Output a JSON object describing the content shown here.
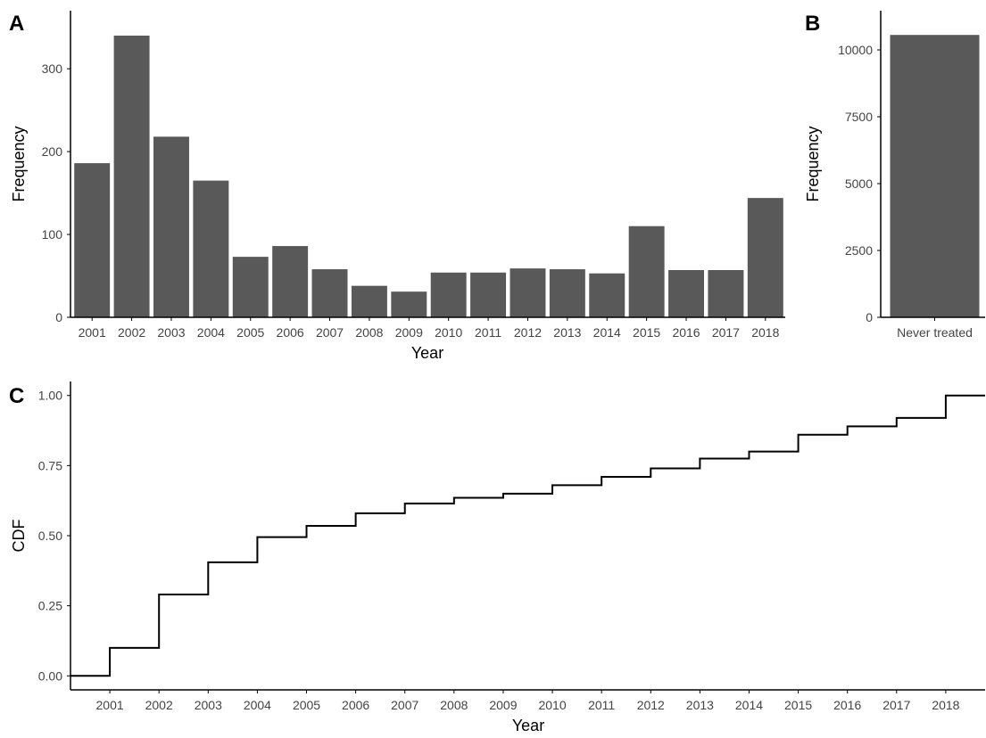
{
  "colors": {
    "bar": "#595959",
    "axis": "#000000",
    "tick_text": "#444444",
    "line": "#000000"
  },
  "chart_data": [
    {
      "panel": "A",
      "type": "bar",
      "xlabel": "Year",
      "ylabel": "Frequency",
      "categories": [
        "2001",
        "2002",
        "2003",
        "2004",
        "2005",
        "2006",
        "2007",
        "2008",
        "2009",
        "2010",
        "2011",
        "2012",
        "2013",
        "2014",
        "2015",
        "2016",
        "2017",
        "2018"
      ],
      "values": [
        186,
        340,
        218,
        165,
        73,
        86,
        58,
        38,
        31,
        54,
        54,
        59,
        58,
        53,
        110,
        57,
        57,
        144
      ],
      "ylim": [
        0,
        355
      ],
      "yticks": [
        0,
        100,
        200,
        300
      ],
      "ytick_labels": [
        "0",
        "100",
        "200",
        "300"
      ],
      "grid": false
    },
    {
      "panel": "B",
      "type": "bar",
      "xlabel": "",
      "ylabel": "Frequency",
      "categories": [
        "Never treated"
      ],
      "values": [
        10560
      ],
      "ylim": [
        0,
        11000
      ],
      "yticks": [
        0,
        2500,
        5000,
        7500,
        10000
      ],
      "ytick_labels": [
        "0",
        "2500",
        "5000",
        "7500",
        "10000"
      ],
      "grid": false
    },
    {
      "panel": "C",
      "type": "line",
      "step": true,
      "xlabel": "Year",
      "ylabel": "CDF",
      "x": [
        2001,
        2002,
        2003,
        2004,
        2005,
        2006,
        2007,
        2008,
        2009,
        2010,
        2011,
        2012,
        2013,
        2014,
        2015,
        2016,
        2017,
        2018
      ],
      "y": [
        0.1,
        0.29,
        0.405,
        0.495,
        0.535,
        0.58,
        0.615,
        0.635,
        0.65,
        0.68,
        0.71,
        0.74,
        0.775,
        0.8,
        0.86,
        0.89,
        0.92,
        1.0
      ],
      "start_value": 0.0,
      "xlim": [
        2000.2,
        2018.8
      ],
      "ylim": [
        -0.05,
        1.05
      ],
      "xticks": [
        "2001",
        "2002",
        "2003",
        "2004",
        "2005",
        "2006",
        "2007",
        "2008",
        "2009",
        "2010",
        "2011",
        "2012",
        "2013",
        "2014",
        "2015",
        "2016",
        "2017",
        "2018"
      ],
      "yticks": [
        0,
        0.25,
        0.5,
        0.75,
        1
      ],
      "ytick_labels": [
        "0.00",
        "0.25",
        "0.50",
        "0.75",
        "1.00"
      ],
      "grid": false
    }
  ]
}
